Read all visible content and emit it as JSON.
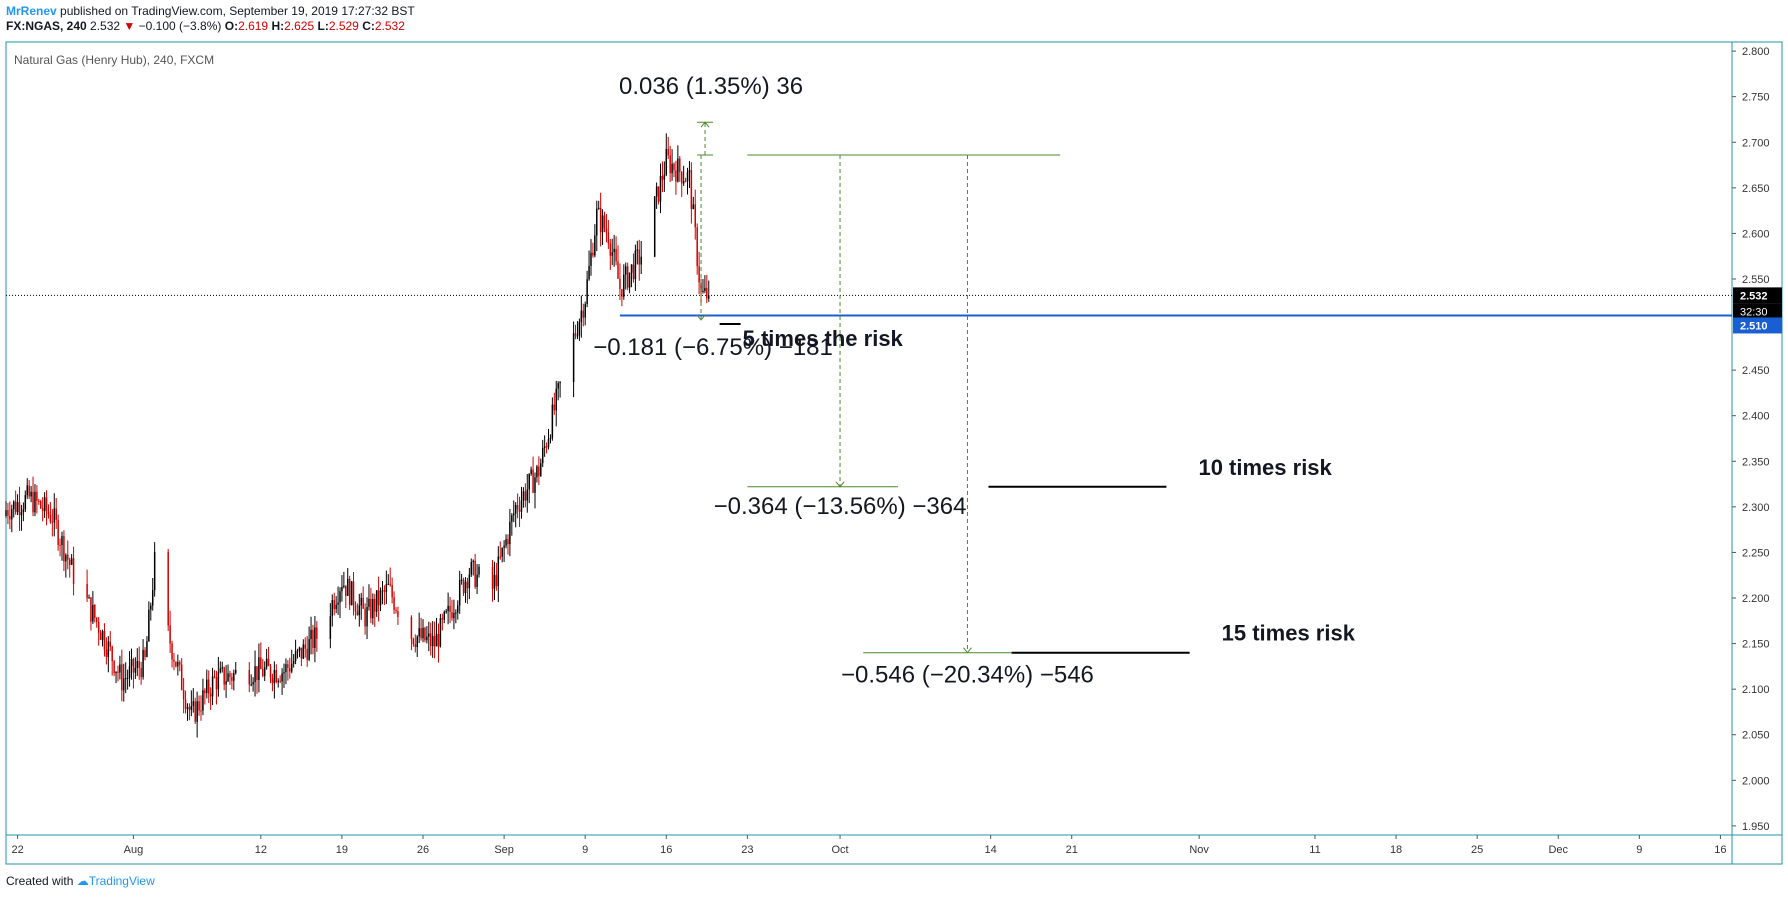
{
  "header": {
    "author": "MrRenev",
    "published": " published on TradingView.com, September 19, 2019 17:27:32 BST",
    "symbol": "FX:NGAS, 240",
    "last": "2.532",
    "change": "−0.100 (−3.8%)",
    "o_label": "O:",
    "o_value": "2.619",
    "h_label": "H:",
    "h_value": "2.625",
    "l_label": "L:",
    "l_value": "2.529",
    "c_label": "C:",
    "c_value": "2.532"
  },
  "footer": {
    "created_with": "Created with",
    "brand": "TradingView"
  },
  "colors": {
    "up_candle": "#000000",
    "down_candle": "#d10000",
    "frame": "#2196a8",
    "measure": "#4c8a2c",
    "level_line": "#1a5fd1",
    "price_badge": "#000000",
    "level_badge": "#1a5fd1",
    "brand": "#2196f3"
  },
  "chart_data": {
    "type": "candlestick",
    "title": "Natural Gas (Henry Hub), 240, FXCM",
    "ylim": [
      1.94,
      2.81
    ],
    "y_ticks": [
      "2.800",
      "2.750",
      "2.700",
      "2.650",
      "2.600",
      "2.550",
      "2.450",
      "2.400",
      "2.350",
      "2.300",
      "2.250",
      "2.200",
      "2.150",
      "2.100",
      "2.050",
      "2.000",
      "1.950"
    ],
    "x_ticks": [
      {
        "label": "22",
        "date": "2019-07-22"
      },
      {
        "label": "Aug",
        "date": "2019-08-01"
      },
      {
        "label": "12",
        "date": "2019-08-12"
      },
      {
        "label": "19",
        "date": "2019-08-19"
      },
      {
        "label": "26",
        "date": "2019-08-26"
      },
      {
        "label": "Sep",
        "date": "2019-09-02"
      },
      {
        "label": "9",
        "date": "2019-09-09"
      },
      {
        "label": "16",
        "date": "2019-09-16"
      },
      {
        "label": "23",
        "date": "2019-09-23"
      },
      {
        "label": "Oct",
        "date": "2019-10-01"
      },
      {
        "label": "14",
        "date": "2019-10-14"
      },
      {
        "label": "21",
        "date": "2019-10-21"
      },
      {
        "label": "Nov",
        "date": "2019-11-01"
      },
      {
        "label": "11",
        "date": "2019-11-11"
      },
      {
        "label": "18",
        "date": "2019-11-18"
      },
      {
        "label": "25",
        "date": "2019-11-25"
      },
      {
        "label": "Dec",
        "date": "2019-12-02"
      },
      {
        "label": "9",
        "date": "2019-12-09"
      },
      {
        "label": "16",
        "date": "2019-12-16"
      }
    ],
    "x_range": [
      "2019-07-21",
      "2019-12-17"
    ],
    "price_anchors": [
      {
        "date": "2019-07-20",
        "close": 2.29
      },
      {
        "date": "2019-07-23",
        "close": 2.31
      },
      {
        "date": "2019-07-25",
        "close": 2.29
      },
      {
        "date": "2019-07-27",
        "close": 2.22
      },
      {
        "date": "2019-07-29",
        "close": 2.17
      },
      {
        "date": "2019-07-31",
        "close": 2.11
      },
      {
        "date": "2019-08-02",
        "close": 2.13
      },
      {
        "date": "2019-08-03",
        "close": 2.26
      },
      {
        "date": "2019-08-04",
        "close": 2.16
      },
      {
        "date": "2019-08-06",
        "close": 2.07
      },
      {
        "date": "2019-08-08",
        "close": 2.11
      },
      {
        "date": "2019-08-11",
        "close": 2.12
      },
      {
        "date": "2019-08-14",
        "close": 2.12
      },
      {
        "date": "2019-08-17",
        "close": 2.16
      },
      {
        "date": "2019-08-19",
        "close": 2.22
      },
      {
        "date": "2019-08-21",
        "close": 2.18
      },
      {
        "date": "2019-08-23",
        "close": 2.21
      },
      {
        "date": "2019-08-25",
        "close": 2.16
      },
      {
        "date": "2019-08-27",
        "close": 2.15
      },
      {
        "date": "2019-08-30",
        "close": 2.23
      },
      {
        "date": "2019-09-01",
        "close": 2.21
      },
      {
        "date": "2019-09-03",
        "close": 2.3
      },
      {
        "date": "2019-09-05",
        "close": 2.34
      },
      {
        "date": "2019-09-07",
        "close": 2.44
      },
      {
        "date": "2019-09-09",
        "close": 2.53
      },
      {
        "date": "2019-09-10",
        "close": 2.62
      },
      {
        "date": "2019-09-11",
        "close": 2.6
      },
      {
        "date": "2019-09-12",
        "close": 2.54
      },
      {
        "date": "2019-09-14",
        "close": 2.58
      },
      {
        "date": "2019-09-16",
        "close": 2.68
      },
      {
        "date": "2019-09-18",
        "close": 2.66
      },
      {
        "date": "2019-09-19",
        "close": 2.532
      }
    ],
    "current_price": 2.532,
    "countdown": "32:30",
    "level": {
      "price": 2.51,
      "label": "2.510",
      "from_date": "2019-09-12"
    },
    "measures": [
      {
        "label": "0.036 (1.35%) 36",
        "date": "2019-09-19",
        "from": 2.686,
        "to": 2.722
      },
      {
        "label": "−0.181 (−6.75%) −181",
        "date": "2019-09-19",
        "from": 2.686,
        "to": 2.505
      },
      {
        "label": "−0.364 (−13.56%) −364",
        "date": "2019-10-01",
        "from": 2.686,
        "to": 2.322
      },
      {
        "label": "−0.546 (−20.34%) −546",
        "date": "2019-10-12",
        "from": 2.686,
        "to": 2.14
      }
    ],
    "target_line": {
      "price": 2.686,
      "from": "2019-09-23",
      "to": "2019-10-20"
    },
    "target_levels": [
      {
        "price": 2.322,
        "from": "2019-09-23",
        "to": "2019-10-06"
      },
      {
        "price": 2.14,
        "from": "2019-10-03",
        "to": "2019-10-20"
      }
    ],
    "annotations": [
      {
        "text": "5 times the risk",
        "date": "2019-09-20",
        "price": 2.505
      },
      {
        "text": "10 times risk",
        "date": "2019-10-24",
        "price": 2.322,
        "line_to": "2019-11-05"
      },
      {
        "text": "15 times risk",
        "date": "2019-10-26",
        "price": 2.14,
        "line_to": "2019-11-06"
      }
    ]
  }
}
